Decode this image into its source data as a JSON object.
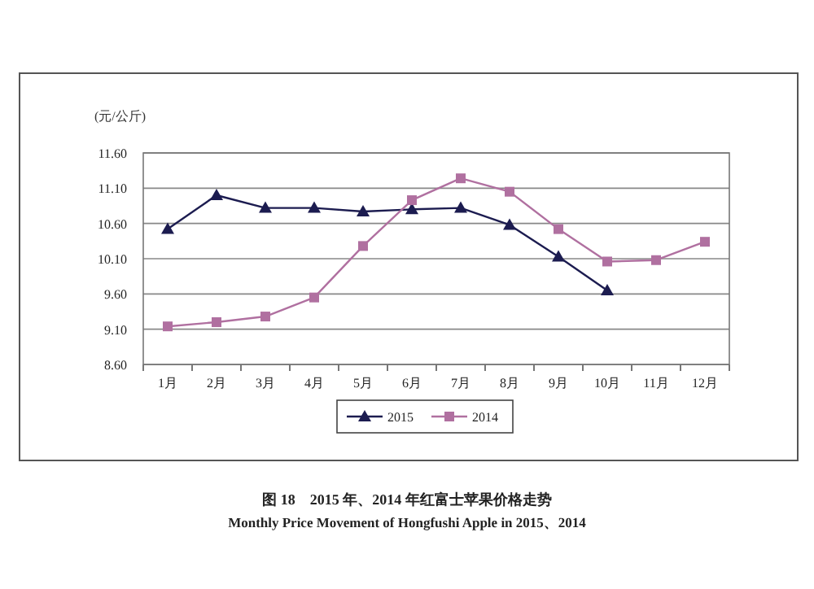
{
  "chart_data": {
    "type": "line",
    "title": "图 18　2015 年、2014 年红富士苹果价格走势",
    "subtitle": "Monthly Price Movement of Hongfushi Apple in 2015、2014",
    "ylabel": "(元/公斤)",
    "categories": [
      "1月",
      "2月",
      "3月",
      "4月",
      "5月",
      "6月",
      "7月",
      "8月",
      "9月",
      "10月",
      "11月",
      "12月"
    ],
    "series": [
      {
        "name": "2015",
        "color": "#1c1c50",
        "marker": "triangle",
        "values": [
          10.52,
          11.0,
          10.82,
          10.82,
          10.77,
          10.8,
          10.82,
          10.58,
          10.13,
          9.65,
          null,
          null
        ]
      },
      {
        "name": "2014",
        "color": "#b070a0",
        "marker": "square",
        "values": [
          9.14,
          9.2,
          9.28,
          9.55,
          10.28,
          10.93,
          11.24,
          11.05,
          10.52,
          10.06,
          10.08,
          10.34
        ]
      }
    ],
    "ylim": [
      8.6,
      11.6
    ],
    "yticks": [
      {
        "value": 8.6,
        "label": "8.60"
      },
      {
        "value": 9.1,
        "label": "9.10"
      },
      {
        "value": 9.6,
        "label": "9.60"
      },
      {
        "value": 10.1,
        "label": "10.10"
      },
      {
        "value": 10.6,
        "label": "10.60"
      },
      {
        "value": 11.1,
        "label": "11.10"
      },
      {
        "value": 11.6,
        "label": "11.60"
      }
    ],
    "grid": "y",
    "legend": "bottom",
    "line_style": "solid"
  }
}
